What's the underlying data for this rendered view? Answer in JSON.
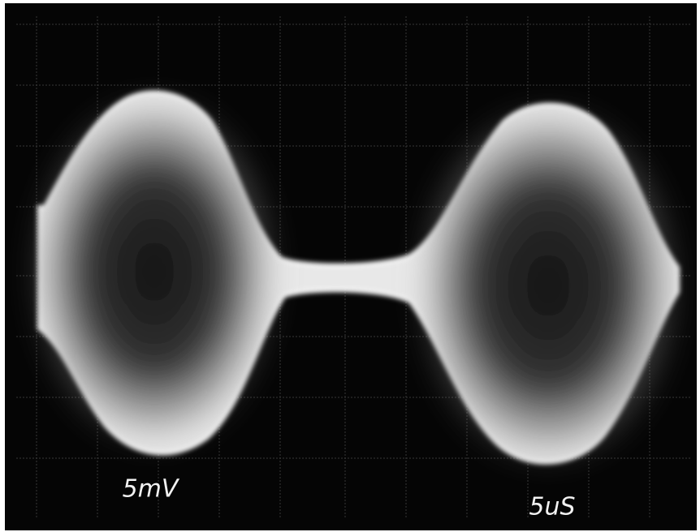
{
  "labels": {
    "vertical_scale": "5mV",
    "time_scale": "5uS"
  }
}
